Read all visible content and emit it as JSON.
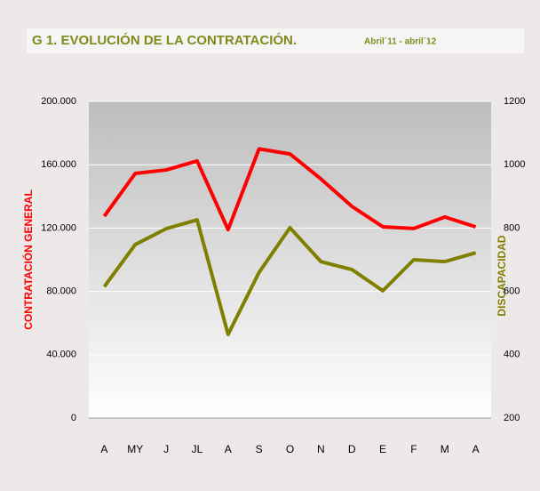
{
  "chart_data": {
    "type": "line",
    "title": "G 1. EVOLUCIÓN DE LA CONTRATACIÓN.",
    "subtitle": "Abril´11 - abril´12",
    "y_label": "CONTRATACIÓN GENERAL",
    "y2_label": "DISCAPACIDAD",
    "categories": [
      "A",
      "MY",
      "J",
      "JL",
      "A",
      "S",
      "O",
      "N",
      "D",
      "E",
      "F",
      "M",
      "A"
    ],
    "series": [
      {
        "name": "CONTRATACIÓN GENERAL",
        "color": "#ff0000",
        "values": [
          127500,
          154500,
          156700,
          162400,
          119000,
          170000,
          166800,
          151000,
          133700,
          120800,
          119700,
          127000,
          120800
        ]
      },
      {
        "name": "DISCAPACIDAD",
        "color": "#808000",
        "axis": "y2",
        "values": [
          615,
          748,
          798,
          826,
          464,
          660,
          801,
          694,
          669,
          602,
          700,
          694,
          722
        ]
      }
    ],
    "ylim": [
      0,
      200000
    ],
    "yticks": [
      0,
      {
        "value": 40000,
        "label": "40.000"
      },
      {
        "value": 80000,
        "label": "80.000"
      },
      {
        "value": 120000,
        "label": "120.000"
      },
      {
        "value": 160000,
        "label": "160.000"
      },
      {
        "value": 200000,
        "label": "200.000"
      }
    ],
    "y2lim": [
      200,
      1200
    ],
    "y2ticks": [
      200,
      400,
      600,
      800,
      1000,
      1200
    ],
    "grid": true
  }
}
